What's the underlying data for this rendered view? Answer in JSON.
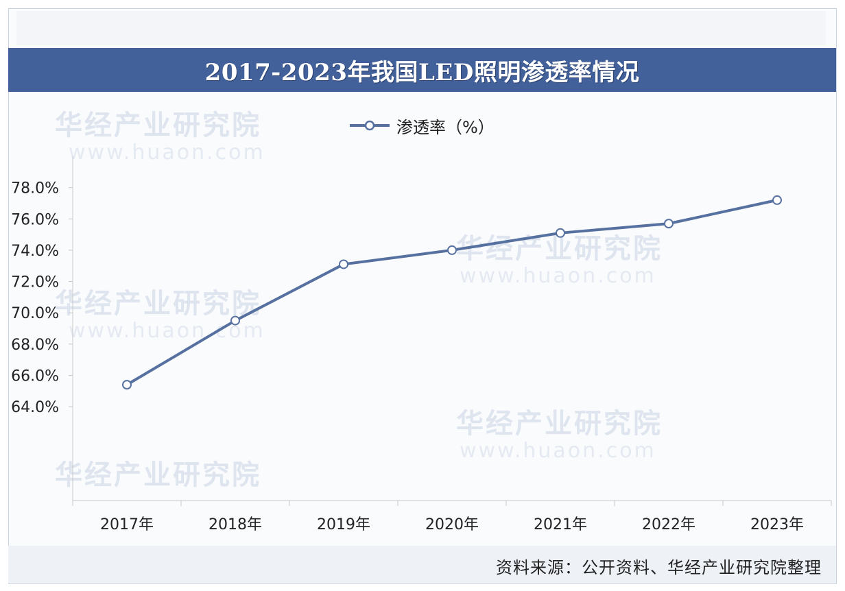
{
  "title": "2017-2023年我国LED照明渗透率情况",
  "source": "资料来源：公开资料、华经产业研究院整理",
  "watermark": {
    "name": "华经产业研究院",
    "url": "www.huaon.com"
  },
  "colors": {
    "title_bg": "#42609a",
    "line": "#5670a0",
    "axis": "#c8c8c8"
  },
  "chart_data": {
    "type": "line",
    "categories": [
      "2017年",
      "2018年",
      "2019年",
      "2020年",
      "2021年",
      "2022年",
      "2023年"
    ],
    "series": [
      {
        "name": "渗透率（%）",
        "values": [
          65.4,
          69.5,
          73.1,
          74.0,
          75.1,
          75.7,
          77.2
        ]
      }
    ],
    "y_ticks": [
      "78.0%",
      "76.0%",
      "74.0%",
      "72.0%",
      "70.0%",
      "68.0%",
      "66.0%",
      "64.0%"
    ],
    "y_tick_values": [
      78,
      76,
      74,
      72,
      70,
      68,
      66,
      64
    ],
    "ylim": [
      58,
      80
    ],
    "legend_position": "top-center",
    "grid": false
  }
}
